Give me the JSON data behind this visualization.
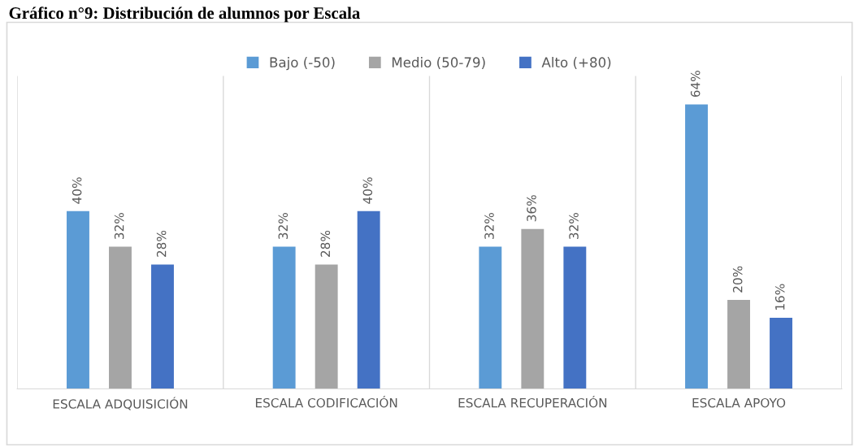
{
  "chart_data": {
    "type": "bar",
    "title": "Gráfico n°9: Distribución de alumnos por Escala",
    "categories": [
      "ESCALA ADQUISICIÓN",
      "ESCALA CODIFICACIÓN",
      "ESCALA RECUPERACIÓN",
      "ESCALA APOYO"
    ],
    "series": [
      {
        "name": "Bajo (-50)",
        "color": "#5b9bd5",
        "values": [
          40,
          32,
          32,
          64
        ],
        "value_labels": [
          "40%",
          "32%",
          "32%",
          "64%"
        ]
      },
      {
        "name": "Medio (50-79)",
        "color": "#a5a5a5",
        "values": [
          32,
          28,
          36,
          20
        ],
        "value_labels": [
          "32%",
          "28%",
          "36%",
          "20%"
        ]
      },
      {
        "name": "Alto (+80)",
        "color": "#4472c4",
        "values": [
          28,
          40,
          32,
          16
        ],
        "value_labels": [
          "28%",
          "40%",
          "32%",
          "16%"
        ]
      }
    ],
    "tick_labels": "x",
    "grid": "x",
    "legend": "top"
  }
}
